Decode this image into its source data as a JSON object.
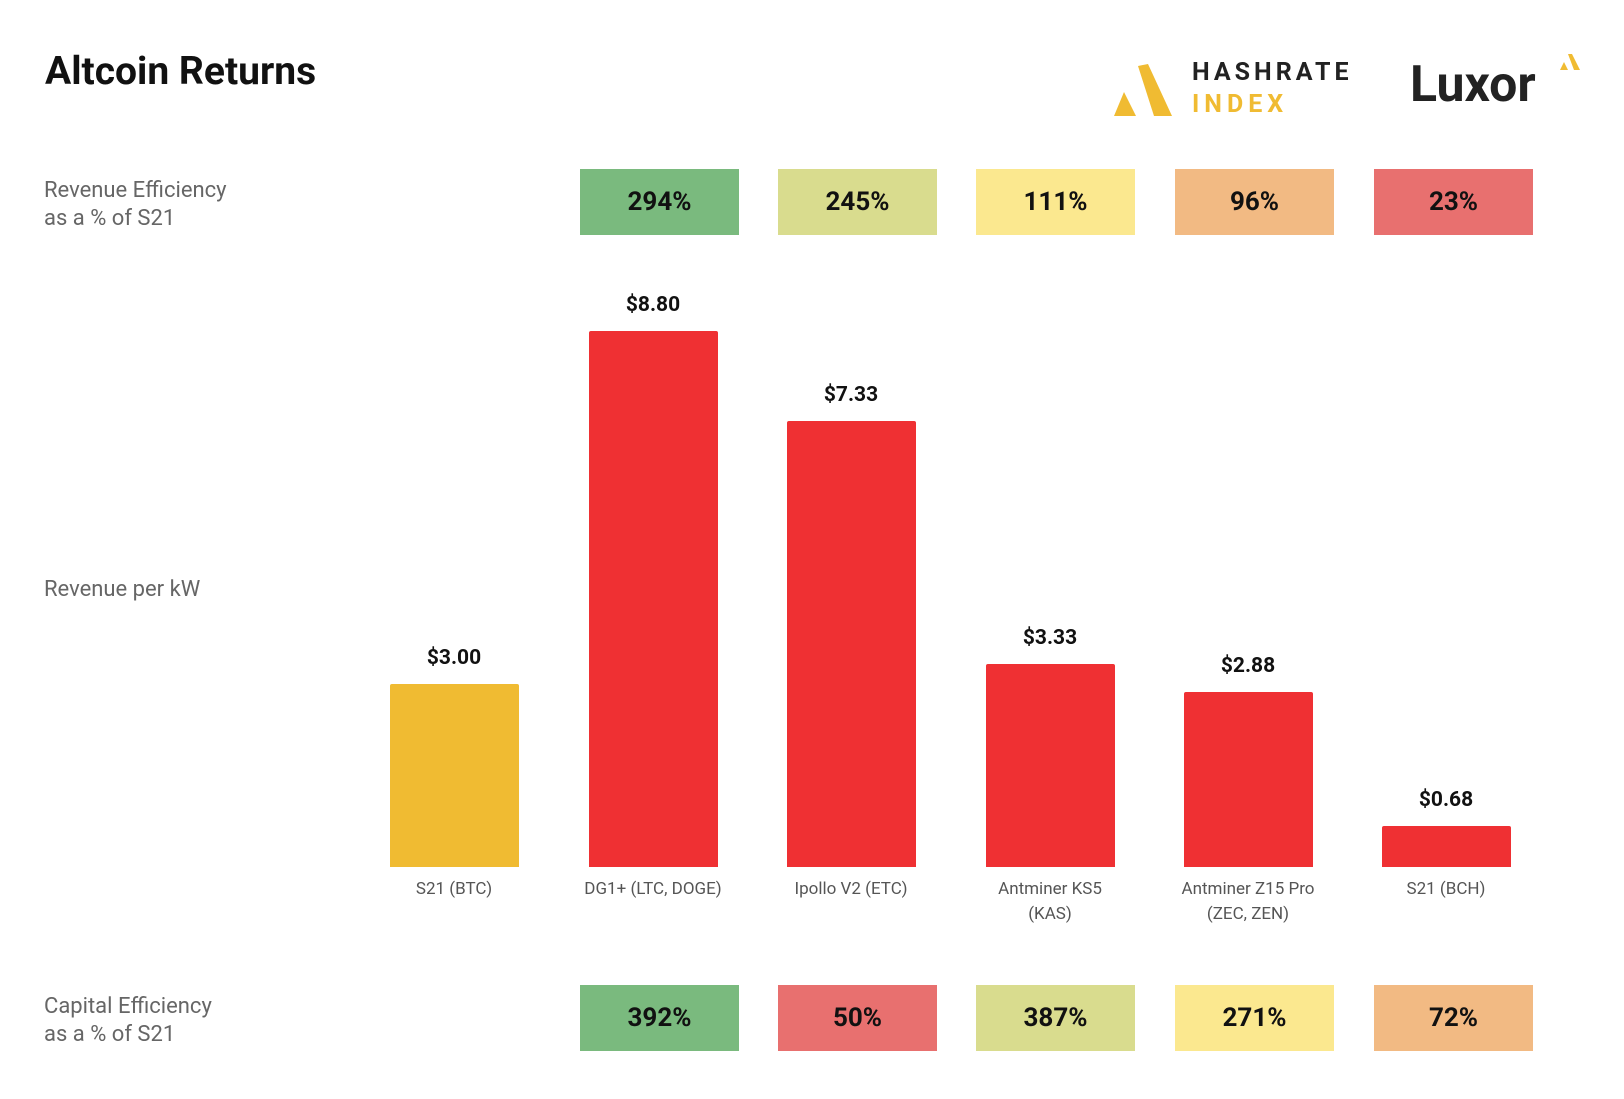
{
  "title": "Altcoin Returns",
  "logos": {
    "hashrate_line1": "HASHRATE",
    "hashrate_line2": "INDEX",
    "luxor": "Luxor"
  },
  "chart_data": {
    "type": "bar",
    "y_label": "Revenue per kW",
    "categories": [
      "S21 (BTC)",
      "DG1+ (LTC, DOGE)",
      "Ipollo V2 (ETC)",
      "Antminer KS5\n(KAS)",
      "Antminer Z15 Pro\n(ZEC, ZEN)",
      "S21 (BCH)"
    ],
    "values": [
      3.0,
      8.8,
      7.33,
      3.33,
      2.88,
      0.68
    ],
    "value_labels": [
      "$3.00",
      "$8.80",
      "$7.33",
      "$3.33",
      "$2.88",
      "$0.68"
    ],
    "colors": [
      "#f0bb32",
      "#ef3033",
      "#ef3033",
      "#ef3033",
      "#ef3033",
      "#ef3033"
    ],
    "ylim": [
      0,
      8.8
    ]
  },
  "revenue_efficiency": {
    "label": "Revenue Efficiency\nas a % of S21",
    "values": [
      294,
      245,
      111,
      96,
      23
    ],
    "value_labels": [
      "294%",
      "245%",
      "111%",
      "96%",
      "23%"
    ],
    "colors": [
      "#7aba7e",
      "#d9dc8e",
      "#fbe88f",
      "#f2ba83",
      "#e8706f"
    ]
  },
  "capital_efficiency": {
    "label": "Capital Efficiency\nas a % of S21",
    "values": [
      392,
      50,
      387,
      271,
      72
    ],
    "value_labels": [
      "392%",
      "50%",
      "387%",
      "271%",
      "72%"
    ],
    "colors": [
      "#7aba7e",
      "#e8706f",
      "#d9dc8e",
      "#fbe88f",
      "#f2ba83"
    ]
  }
}
